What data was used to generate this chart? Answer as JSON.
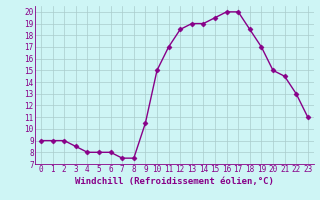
{
  "x": [
    0,
    1,
    2,
    3,
    4,
    5,
    6,
    7,
    8,
    9,
    10,
    11,
    12,
    13,
    14,
    15,
    16,
    17,
    18,
    19,
    20,
    21,
    22,
    23
  ],
  "y": [
    9,
    9,
    9,
    8.5,
    8,
    8,
    8,
    7.5,
    7.5,
    10.5,
    15,
    17,
    18.5,
    19,
    19,
    19.5,
    20,
    20,
    18.5,
    17,
    15,
    14.5,
    13,
    11
  ],
  "line_color": "#880088",
  "marker": "D",
  "marker_size": 2.5,
  "bg_color": "#cef5f5",
  "grid_color": "#aacccc",
  "xlabel": "Windchill (Refroidissement éolien,°C)",
  "xlim": [
    -0.5,
    23.5
  ],
  "ylim": [
    7,
    20.5
  ],
  "yticks": [
    7,
    8,
    9,
    10,
    11,
    12,
    13,
    14,
    15,
    16,
    17,
    18,
    19,
    20
  ],
  "xticks": [
    0,
    1,
    2,
    3,
    4,
    5,
    6,
    7,
    8,
    9,
    10,
    11,
    12,
    13,
    14,
    15,
    16,
    17,
    18,
    19,
    20,
    21,
    22,
    23
  ],
  "tick_fontsize": 5.5,
  "xlabel_fontsize": 6.5,
  "line_width": 1.0
}
